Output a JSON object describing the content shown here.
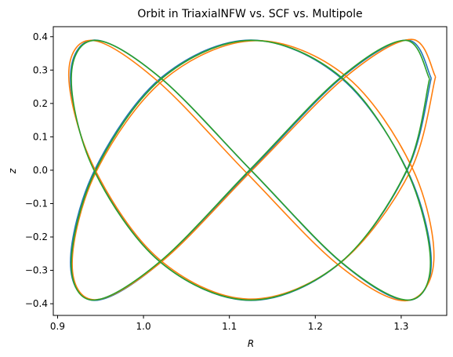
{
  "chart_data": {
    "type": "line",
    "title": "Orbit in TriaxialNFW vs. SCF vs. Multipole",
    "xlabel": "R",
    "ylabel": "z",
    "xlim": [
      0.895,
      1.353
    ],
    "ylim": [
      -0.435,
      0.43
    ],
    "xticks": [
      0.9,
      {
        "value": 1.0,
        "label": "1.0"
      },
      1.1,
      1.2,
      1.3
    ],
    "yticks": [
      {
        "value": -0.4,
        "label": "−0.4"
      },
      {
        "value": -0.3,
        "label": "−0.3"
      },
      {
        "value": -0.2,
        "label": "−0.2"
      },
      {
        "value": -0.1,
        "label": "−0.1"
      },
      {
        "value": 0,
        "label": "0.0"
      },
      0.1,
      0.2,
      0.3,
      0.4
    ],
    "series": [
      {
        "color": "#1f77b4",
        "x": [
          1.335,
          1.307,
          1.23,
          1.125,
          1.02,
          0.943,
          0.915,
          0.943,
          1.02,
          1.125,
          1.23,
          1.307,
          1.335,
          1.307,
          1.23,
          1.125,
          1.02,
          0.943,
          0.915,
          0.943,
          1.02,
          1.125,
          1.23,
          1.307,
          1.335
        ],
        "y": [
          0.276,
          0.39,
          0.276,
          0,
          -0.276,
          -0.39,
          -0.276,
          0,
          0.276,
          0.39,
          0.276,
          0,
          -0.276,
          -0.39,
          -0.276,
          0,
          0.276,
          0.39,
          0.276,
          0,
          -0.276,
          -0.39,
          -0.276,
          0,
          0.276
        ]
      },
      {
        "color": "#ff7f0e",
        "x": [
          1.34,
          1.312,
          1.235,
          1.128,
          1.022,
          0.944,
          0.917,
          0.945,
          1.024,
          1.13,
          1.236,
          1.313,
          1.338,
          1.305,
          1.226,
          1.12,
          1.016,
          0.94,
          0.913,
          0.942,
          1.018,
          1.122,
          1.228,
          1.31,
          1.34
        ],
        "y": [
          0.28,
          0.392,
          0.279,
          0.004,
          -0.272,
          -0.388,
          -0.279,
          -0.004,
          0.272,
          0.388,
          0.281,
          0.006,
          -0.27,
          -0.391,
          -0.282,
          -0.008,
          0.268,
          0.389,
          0.283,
          0.01,
          -0.266,
          -0.386,
          -0.28,
          -0.006,
          0.28
        ]
      },
      {
        "color": "#2ca02c",
        "x": [
          1.333,
          1.305,
          1.229,
          1.124,
          1.019,
          0.942,
          0.916,
          0.944,
          1.021,
          1.126,
          1.231,
          1.306,
          1.334,
          1.308,
          1.231,
          1.126,
          1.021,
          0.944,
          0.916,
          0.942,
          1.019,
          1.124,
          1.229,
          1.306,
          1.333
        ],
        "y": [
          0.274,
          0.389,
          0.277,
          0.002,
          -0.274,
          -0.389,
          -0.277,
          -0.002,
          0.274,
          0.389,
          0.277,
          0.002,
          -0.274,
          -0.389,
          -0.277,
          -0.002,
          0.274,
          0.389,
          0.277,
          0.002,
          -0.274,
          -0.389,
          -0.277,
          -0.002,
          0.274
        ]
      }
    ]
  }
}
